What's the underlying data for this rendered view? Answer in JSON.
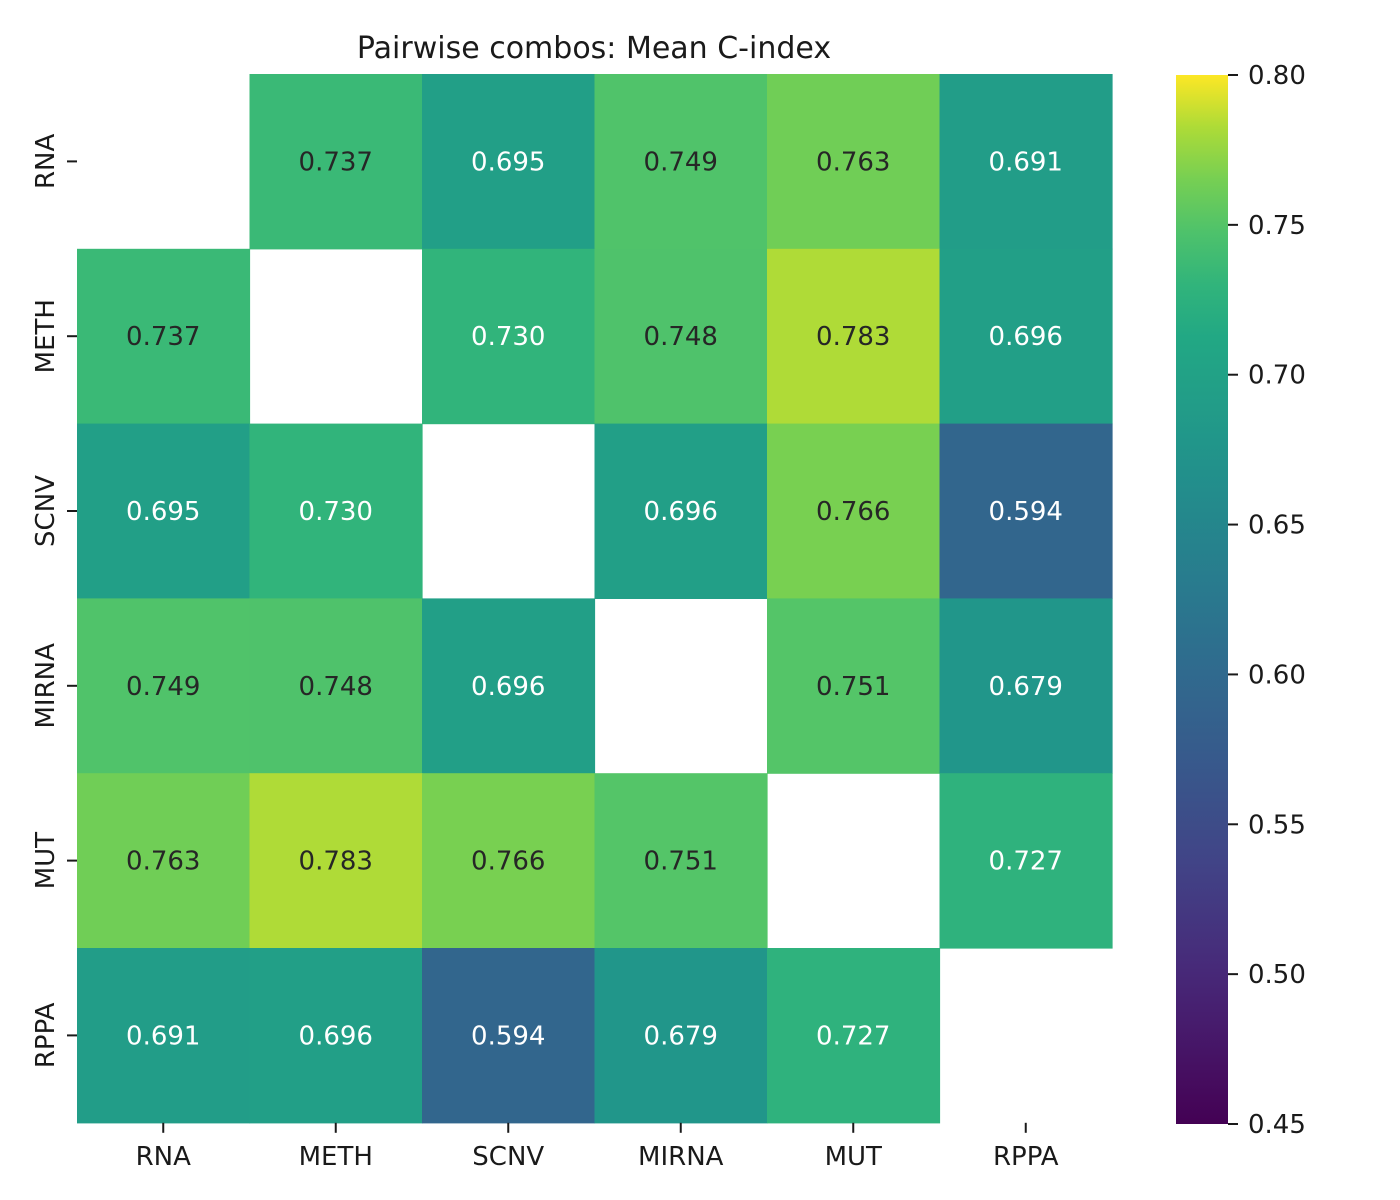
{
  "chart_data": {
    "type": "heatmap",
    "title": "Pairwise combos: Mean C-index",
    "x_categories": [
      "RNA",
      "METH",
      "SCNV",
      "MIRNA",
      "MUT",
      "RPPA"
    ],
    "y_categories": [
      "RNA",
      "METH",
      "SCNV",
      "MIRNA",
      "MUT",
      "RPPA"
    ],
    "values": [
      [
        null,
        0.737,
        0.695,
        0.749,
        0.763,
        0.691
      ],
      [
        0.737,
        null,
        0.73,
        0.748,
        0.783,
        0.696
      ],
      [
        0.695,
        0.73,
        null,
        0.696,
        0.766,
        0.594
      ],
      [
        0.749,
        0.748,
        0.696,
        null,
        0.751,
        0.679
      ],
      [
        0.763,
        0.783,
        0.766,
        0.751,
        null,
        0.727
      ],
      [
        0.691,
        0.696,
        0.594,
        0.679,
        0.727,
        null
      ]
    ],
    "value_format_decimals": 3,
    "colormap": "viridis",
    "vmin": 0.45,
    "vmax": 0.8,
    "colorbar": {
      "ticks": [
        0.45,
        0.5,
        0.55,
        0.6,
        0.65,
        0.7,
        0.75,
        0.8
      ],
      "tick_labels": [
        "0.45",
        "0.50",
        "0.55",
        "0.60",
        "0.65",
        "0.70",
        "0.75",
        "0.80"
      ],
      "position": "right"
    },
    "annotation_colors": {
      "dark_text": "#262626",
      "light_text": "#ffffff"
    }
  }
}
